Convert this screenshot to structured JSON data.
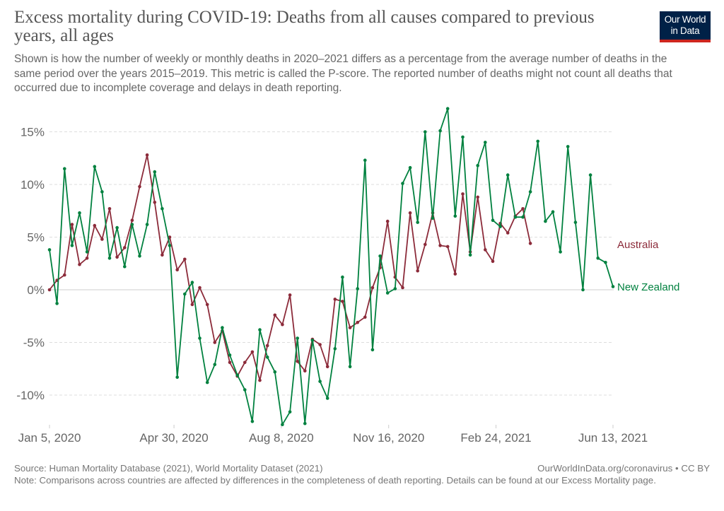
{
  "header": {
    "title": "Excess mortality during COVID-19: Deaths from all causes compared to previous years, all ages",
    "subtitle": "Shown is how the number of weekly or monthly deaths in 2020–2021 differs as a percentage from the average number of deaths in the same period over the years 2015–2019. This metric is called the P-score. The reported number of deaths might not count all deaths that occurred due to incomplete coverage and delays in death reporting.",
    "logo_line1": "Our World",
    "logo_line2": "in Data"
  },
  "footer": {
    "source": "Source: Human Mortality Database (2021), World Mortality Dataset (2021)",
    "link": "OurWorldInData.org/coronavirus • CC BY",
    "note": "Note: Comparisons across countries are affected by differences in the completeness of death reporting. Details can be found at our Excess Mortality page."
  },
  "colors": {
    "australia": "#8c2b3a",
    "new_zealand": "#00813f",
    "grid": "#dddddd",
    "zero_line": "#cccccc",
    "logo_bg": "#002147",
    "logo_accent": "#ce261e"
  },
  "chart_data": {
    "type": "line",
    "title": "Excess mortality during COVID-19: Deaths from all causes compared to previous years, all ages",
    "xlabel": "",
    "ylabel": "",
    "x_start": "2020-01-05",
    "x_interval_days": 7,
    "xlim_days": [
      0,
      525
    ],
    "ylim": [
      -12.8,
      17.5
    ],
    "yticks": [
      -10,
      -5,
      0,
      5,
      10,
      15
    ],
    "ytick_labels": [
      "-10%",
      "-5%",
      "0%",
      "5%",
      "10%",
      "15%"
    ],
    "xticks_days": [
      0,
      116,
      216,
      316,
      416,
      525
    ],
    "xtick_labels": [
      "Jan 5, 2020",
      "Apr 30, 2020",
      "Aug 8, 2020",
      "Nov 16, 2020",
      "Feb 24, 2021",
      "Jun 13, 2021"
    ],
    "grid": true,
    "legend": "right-end-labels",
    "series": [
      {
        "name": "Australia",
        "color": "#8c2b3a",
        "values": [
          0.0,
          0.9,
          1.4,
          6.2,
          2.4,
          3.0,
          6.1,
          4.8,
          7.7,
          3.1,
          4.0,
          6.6,
          9.8,
          12.8,
          8.3,
          3.3,
          5.0,
          1.9,
          2.9,
          -1.4,
          0.2,
          -1.4,
          -5.0,
          -3.9,
          -6.9,
          -8.2,
          -6.9,
          -5.9,
          -8.6,
          -5.3,
          -2.4,
          -3.3,
          -0.5,
          -6.8,
          -7.7,
          -4.7,
          -5.2,
          -7.3,
          -0.9,
          -1.1,
          -3.6,
          -3.1,
          -2.6,
          0.2,
          2.1,
          6.5,
          1.2,
          0.2,
          7.3,
          1.8,
          4.3,
          7.3,
          4.2,
          4.1,
          1.5,
          9.1,
          3.6,
          8.8,
          3.8,
          2.7,
          6.3,
          5.4,
          7.0,
          7.7,
          4.4
        ]
      },
      {
        "name": "New Zealand",
        "color": "#00813f",
        "values": [
          3.8,
          -1.3,
          11.5,
          4.2,
          7.3,
          3.6,
          11.7,
          9.3,
          3.0,
          5.9,
          2.2,
          6.2,
          3.2,
          6.2,
          11.2,
          7.7,
          4.2,
          -8.3,
          -0.4,
          0.7,
          -4.6,
          -8.8,
          -7.1,
          -3.6,
          -6.2,
          -8.1,
          -9.5,
          -12.5,
          -3.8,
          -6.4,
          -7.8,
          -12.8,
          -11.6,
          -4.6,
          -12.7,
          -4.8,
          -8.7,
          -10.3,
          -5.6,
          1.2,
          -7.3,
          0.1,
          12.3,
          -5.7,
          3.2,
          -0.3,
          0.1,
          10.1,
          11.6,
          6.4,
          15.0,
          6.8,
          15.1,
          17.2,
          7.0,
          14.5,
          3.3,
          11.8,
          14.0,
          6.6,
          6.0,
          10.9,
          6.9,
          6.9,
          9.3,
          14.1,
          6.5,
          7.4,
          3.6,
          13.6,
          6.4,
          0.0,
          10.9,
          3.0,
          2.6,
          0.3
        ]
      }
    ]
  }
}
